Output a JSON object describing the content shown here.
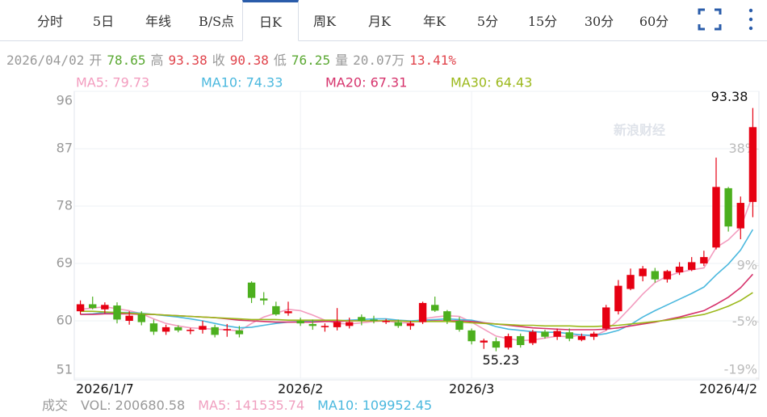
{
  "tabs": [
    "分时",
    "5日",
    "年线",
    "B/S点",
    "日K",
    "周K",
    "月K",
    "年K",
    "5分",
    "15分",
    "30分",
    "60分"
  ],
  "active_tab": 4,
  "chart_data": {
    "type": "candlestick",
    "info": [
      {
        "text": "2026/04/02",
        "color": "#999999"
      },
      {
        "text": "开",
        "color": "#999999"
      },
      {
        "text": "78.65",
        "color": "#5aa832"
      },
      {
        "text": "高",
        "color": "#999999"
      },
      {
        "text": "93.38",
        "color": "#e0424a"
      },
      {
        "text": "收",
        "color": "#999999"
      },
      {
        "text": "90.38",
        "color": "#e0424a"
      },
      {
        "text": "低",
        "color": "#999999"
      },
      {
        "text": "76.25",
        "color": "#5aa832"
      },
      {
        "text": "量",
        "color": "#999999"
      },
      {
        "text": "20.07万",
        "color": "#999999"
      },
      {
        "text": "13.41%",
        "color": "#e0424a"
      }
    ],
    "footer": [
      {
        "text": "成交",
        "color": "#999999"
      },
      {
        "text": "VOL: 200680.58",
        "color": "#999999"
      },
      {
        "text": "MA5: 141535.74",
        "color": "#f0a0c0"
      },
      {
        "text": "MA10: 109952.45",
        "color": "#4ab8de"
      }
    ],
    "watermark": "新浪财经",
    "categories": [
      "2026/1/7",
      null,
      null,
      null,
      null,
      null,
      null,
      null,
      null,
      null,
      null,
      null,
      null,
      null,
      null,
      null,
      null,
      null,
      "2026/2",
      null,
      null,
      null,
      null,
      null,
      null,
      null,
      null,
      null,
      null,
      null,
      null,
      null,
      "2026/3",
      null,
      null,
      null,
      null,
      null,
      null,
      null,
      null,
      null,
      null,
      null,
      null,
      null,
      null,
      null,
      null,
      null,
      null,
      null,
      null,
      null,
      null,
      "2026/4/2"
    ],
    "open": [
      61.5,
      62.6,
      61.8,
      62.4,
      60.0,
      61.0,
      59.6,
      58.3,
      59.0,
      58.4,
      58.6,
      59.0,
      58.5,
      58.5,
      66.0,
      63.5,
      62.3,
      61.2,
      60.0,
      59.5,
      59.0,
      59.0,
      59.2,
      60.6,
      60.2,
      59.8,
      59.8,
      59.2,
      59.8,
      62.5,
      61.5,
      60.0,
      58.5,
      56.6,
      56.8,
      55.8,
      57.6,
      56.5,
      58.3,
      57.5,
      58.2,
      57.0,
      57.5,
      58.8,
      61.5,
      65.0,
      67.0,
      67.8,
      66.5,
      67.6,
      68.0,
      69.0,
      71.5,
      80.8,
      74.5,
      78.65
    ],
    "high": [
      63.2,
      63.8,
      62.9,
      62.9,
      61.5,
      61.5,
      60.2,
      59.4,
      59.3,
      58.9,
      60.0,
      59.4,
      59.5,
      59.2,
      66.2,
      64.5,
      63.0,
      63.0,
      60.5,
      60.2,
      59.6,
      62.0,
      60.5,
      61.0,
      60.8,
      60.3,
      60.2,
      60.0,
      63.0,
      63.8,
      61.7,
      60.6,
      58.8,
      57.2,
      57.4,
      58.0,
      58.0,
      58.6,
      58.6,
      58.8,
      58.8,
      58.0,
      58.3,
      62.5,
      66.4,
      68.2,
      68.6,
      68.3,
      68.0,
      69.2,
      70.0,
      71.0,
      85.6,
      81.0,
      79.5,
      93.38
    ],
    "low": [
      61.0,
      61.8,
      61.2,
      59.6,
      59.4,
      59.3,
      57.8,
      57.8,
      58.2,
      57.9,
      58.0,
      57.4,
      57.5,
      57.4,
      62.8,
      62.5,
      60.8,
      60.8,
      59.2,
      58.6,
      58.3,
      58.5,
      58.8,
      59.3,
      59.6,
      59.5,
      58.9,
      58.6,
      59.5,
      61.4,
      59.5,
      58.3,
      56.3,
      55.6,
      55.23,
      55.5,
      55.8,
      56.2,
      57.2,
      57.0,
      56.8,
      56.8,
      57.0,
      58.5,
      61.0,
      64.8,
      66.2,
      66.0,
      66.0,
      67.2,
      67.8,
      68.6,
      71.2,
      74.0,
      72.8,
      76.25
    ],
    "close": [
      62.6,
      62.0,
      62.5,
      60.2,
      60.8,
      59.8,
      58.3,
      59.0,
      58.5,
      58.6,
      59.2,
      57.8,
      58.7,
      57.9,
      63.6,
      63.2,
      61.0,
      61.5,
      59.6,
      59.2,
      59.2,
      59.8,
      59.8,
      60.0,
      60.0,
      60.0,
      59.2,
      59.6,
      62.8,
      61.6,
      60.0,
      58.6,
      56.8,
      56.9,
      55.8,
      57.6,
      56.2,
      58.3,
      57.5,
      58.4,
      57.2,
      57.6,
      58.0,
      62.1,
      65.5,
      67.2,
      68.2,
      66.5,
      67.8,
      68.5,
      69.2,
      70.0,
      81.0,
      74.8,
      78.5,
      90.38
    ],
    "up_color": "#e60012",
    "down_color": "#4caf1e",
    "series": [
      {
        "label": "MA5: 79.73",
        "color": "#f39cbf",
        "values": [
          61.8,
          62.0,
          62.2,
          61.9,
          61.6,
          61.1,
          60.3,
          59.6,
          59.2,
          58.9,
          58.8,
          58.7,
          58.6,
          58.4,
          59.6,
          60.6,
          61.2,
          61.8,
          61.6,
          60.9,
          60.1,
          59.6,
          59.5,
          59.7,
          59.9,
          60.0,
          59.7,
          59.7,
          60.3,
          60.6,
          60.8,
          60.7,
          59.8,
          58.7,
          57.6,
          57.2,
          56.9,
          57.0,
          57.3,
          57.6,
          57.5,
          57.8,
          57.6,
          58.5,
          60.1,
          62.1,
          64.2,
          66.0,
          67.0,
          67.6,
          68.0,
          68.3,
          71.5,
          72.7,
          74.6,
          79.73
        ]
      },
      {
        "label": "MA10: 74.33",
        "color": "#4ab8de",
        "values": [
          61.0,
          61.1,
          61.3,
          61.3,
          61.3,
          61.2,
          61.0,
          60.8,
          60.6,
          60.3,
          60.0,
          59.6,
          59.2,
          58.9,
          59.0,
          59.3,
          59.6,
          59.8,
          59.9,
          59.9,
          60.0,
          60.0,
          60.1,
          60.2,
          60.3,
          60.3,
          60.1,
          60.0,
          60.1,
          60.2,
          60.3,
          60.2,
          60.1,
          59.7,
          59.1,
          58.7,
          58.5,
          58.3,
          58.2,
          58.2,
          58.0,
          57.8,
          57.7,
          58.0,
          58.5,
          59.4,
          60.6,
          61.6,
          62.5,
          63.4,
          64.3,
          65.3,
          67.2,
          68.9,
          71.1,
          74.33
        ]
      },
      {
        "label": "MA20: 67.31",
        "color": "#d6336c",
        "values": [
          61.0,
          61.0,
          61.1,
          61.1,
          61.1,
          61.0,
          61.0,
          60.9,
          60.8,
          60.7,
          60.6,
          60.5,
          60.3,
          60.1,
          60.0,
          59.9,
          59.8,
          59.8,
          59.8,
          59.8,
          59.9,
          59.9,
          60.0,
          60.0,
          60.0,
          60.0,
          60.0,
          59.9,
          59.9,
          60.0,
          60.0,
          60.0,
          59.9,
          59.7,
          59.5,
          59.3,
          59.1,
          58.9,
          58.8,
          58.7,
          58.6,
          58.6,
          58.6,
          58.7,
          58.9,
          59.2,
          59.5,
          59.8,
          60.2,
          60.6,
          61.1,
          61.6,
          62.6,
          63.7,
          65.2,
          67.31
        ]
      },
      {
        "label": "MA30: 64.43",
        "color": "#9bb81a",
        "values": [
          61.5,
          61.5,
          61.4,
          61.3,
          61.2,
          61.1,
          61.0,
          60.9,
          60.8,
          60.7,
          60.6,
          60.5,
          60.4,
          60.3,
          60.2,
          60.2,
          60.2,
          60.1,
          60.1,
          60.1,
          60.1,
          60.1,
          60.0,
          60.0,
          60.0,
          60.0,
          60.0,
          59.9,
          59.9,
          59.9,
          59.9,
          59.8,
          59.7,
          59.6,
          59.5,
          59.4,
          59.3,
          59.3,
          59.2,
          59.2,
          59.2,
          59.1,
          59.1,
          59.2,
          59.3,
          59.5,
          59.7,
          59.9,
          60.1,
          60.4,
          60.7,
          61.0,
          61.6,
          62.3,
          63.2,
          64.43
        ]
      }
    ],
    "ylim": [
      51,
      96
    ],
    "yticks": [
      51,
      60,
      69,
      78,
      87,
      96
    ],
    "y2lim": [
      -19,
      52.4
    ],
    "y2ticks": [
      {
        "value": -19,
        "label": "-19%"
      },
      {
        "value": -5,
        "label": "-5%"
      },
      {
        "value": 9,
        "label": "9%"
      },
      {
        "value": 38,
        "label": "38%"
      }
    ],
    "grid": true,
    "max_label_index": 55,
    "min_label_index": 34
  }
}
